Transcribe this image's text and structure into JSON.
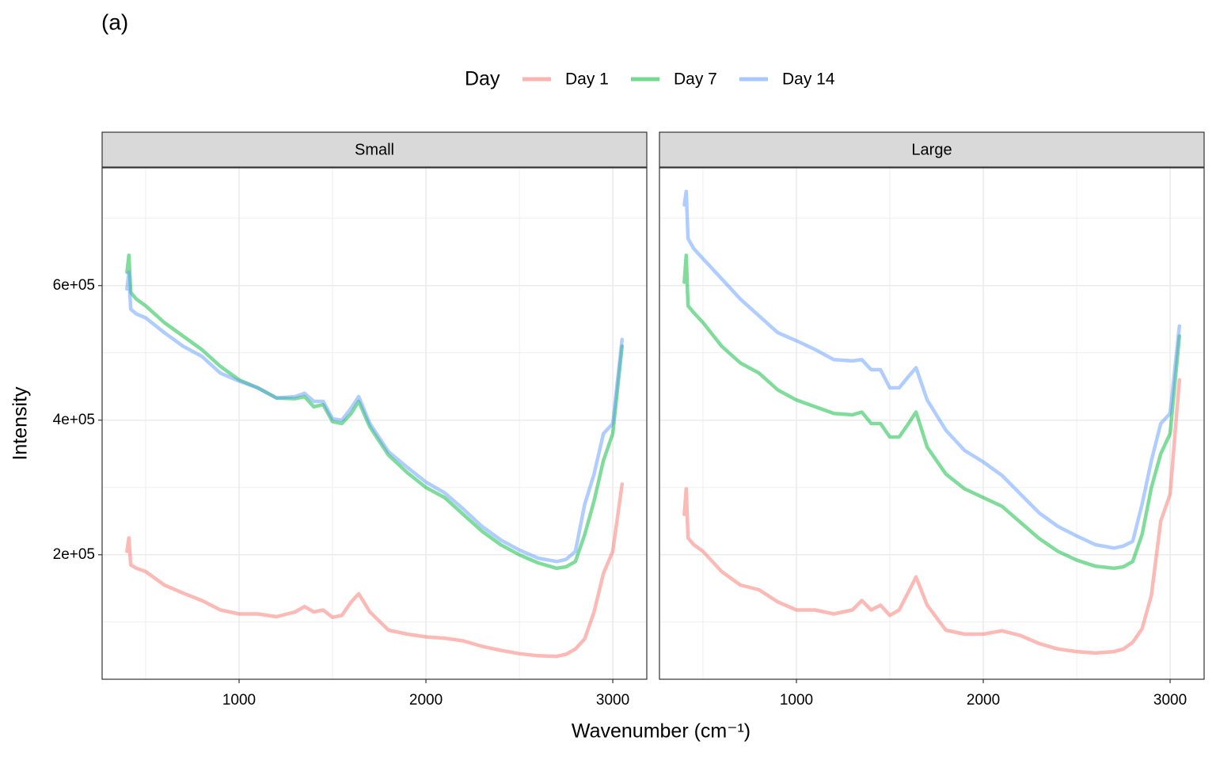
{
  "label": "(a)",
  "legend_title": "Day",
  "xlabel": "Wavenumber (cm⁻¹)",
  "ylabel": "Intensity",
  "chart_data": [
    {
      "type": "line",
      "title": "Small",
      "x": [
        400,
        410,
        420,
        450,
        500,
        600,
        700,
        800,
        900,
        1000,
        1100,
        1200,
        1300,
        1350,
        1400,
        1450,
        1500,
        1550,
        1600,
        1640,
        1700,
        1800,
        1900,
        2000,
        2100,
        2200,
        2300,
        2400,
        2500,
        2600,
        2700,
        2750,
        2800,
        2850,
        2900,
        2950,
        3000,
        3050
      ],
      "series": [
        {
          "name": "Day 1",
          "color": "#F8766D",
          "values": [
            205000,
            225000,
            185000,
            180000,
            175000,
            155000,
            143000,
            132000,
            118000,
            112000,
            112000,
            108000,
            115000,
            123000,
            115000,
            118000,
            107000,
            110000,
            130000,
            142000,
            115000,
            88000,
            82000,
            78000,
            76000,
            72000,
            64000,
            58000,
            53000,
            50000,
            49000,
            52000,
            60000,
            75000,
            115000,
            172000,
            205000,
            305000
          ]
        },
        {
          "name": "Day 7",
          "color": "#00BA38",
          "values": [
            620000,
            645000,
            590000,
            580000,
            570000,
            545000,
            525000,
            505000,
            480000,
            460000,
            448000,
            433000,
            432000,
            435000,
            420000,
            423000,
            398000,
            395000,
            410000,
            428000,
            390000,
            348000,
            322000,
            300000,
            285000,
            260000,
            235000,
            215000,
            200000,
            188000,
            180000,
            182000,
            190000,
            230000,
            280000,
            340000,
            380000,
            510000
          ]
        },
        {
          "name": "Day 14",
          "color": "#619CFF",
          "values": [
            595000,
            620000,
            565000,
            558000,
            552000,
            530000,
            510000,
            495000,
            470000,
            458000,
            448000,
            433000,
            435000,
            440000,
            428000,
            428000,
            402000,
            400000,
            418000,
            435000,
            395000,
            353000,
            330000,
            308000,
            292000,
            268000,
            242000,
            222000,
            207000,
            195000,
            190000,
            193000,
            205000,
            275000,
            320000,
            380000,
            395000,
            520000
          ]
        }
      ],
      "xlim": [
        267,
        3182
      ],
      "xticks": [
        1000,
        2000,
        3000
      ],
      "xminor": [
        500,
        1500,
        2500
      ],
      "ylim": [
        15000,
        775000
      ],
      "yticks": [
        {
          "value": 200000,
          "label": "2e+05"
        },
        {
          "value": 400000,
          "label": "4e+05"
        },
        {
          "value": 600000,
          "label": "6e+05"
        }
      ],
      "yminor": [
        100000,
        300000,
        500000,
        700000
      ],
      "grid": true
    },
    {
      "type": "line",
      "title": "Large",
      "x": [
        400,
        410,
        420,
        450,
        500,
        600,
        700,
        800,
        900,
        1000,
        1100,
        1200,
        1300,
        1350,
        1400,
        1450,
        1500,
        1550,
        1600,
        1640,
        1700,
        1800,
        1900,
        2000,
        2100,
        2200,
        2300,
        2400,
        2500,
        2600,
        2700,
        2750,
        2800,
        2850,
        2900,
        2950,
        3000,
        3050
      ],
      "series": [
        {
          "name": "Day 1",
          "color": "#F8766D",
          "values": [
            260000,
            298000,
            225000,
            215000,
            205000,
            175000,
            155000,
            148000,
            130000,
            118000,
            118000,
            112000,
            118000,
            132000,
            118000,
            125000,
            110000,
            118000,
            145000,
            167000,
            125000,
            88000,
            82000,
            82000,
            87000,
            80000,
            68000,
            60000,
            56000,
            54000,
            56000,
            60000,
            70000,
            90000,
            140000,
            250000,
            290000,
            460000
          ]
        },
        {
          "name": "Day 7",
          "color": "#00BA38",
          "values": [
            605000,
            645000,
            570000,
            560000,
            545000,
            510000,
            485000,
            470000,
            445000,
            430000,
            420000,
            410000,
            408000,
            412000,
            395000,
            395000,
            375000,
            375000,
            395000,
            412000,
            360000,
            320000,
            298000,
            285000,
            272000,
            248000,
            224000,
            205000,
            192000,
            183000,
            180000,
            182000,
            190000,
            230000,
            300000,
            350000,
            380000,
            525000
          ]
        },
        {
          "name": "Day 14",
          "color": "#619CFF",
          "values": [
            720000,
            740000,
            670000,
            655000,
            640000,
            610000,
            580000,
            555000,
            530000,
            518000,
            505000,
            490000,
            488000,
            490000,
            475000,
            475000,
            448000,
            448000,
            465000,
            478000,
            430000,
            385000,
            355000,
            338000,
            318000,
            290000,
            262000,
            242000,
            228000,
            215000,
            210000,
            213000,
            220000,
            275000,
            340000,
            395000,
            410000,
            540000
          ]
        }
      ],
      "xlim": [
        267,
        3182
      ],
      "xticks": [
        1000,
        2000,
        3000
      ],
      "xminor": [
        500,
        1500,
        2500
      ],
      "ylim": [
        15000,
        775000
      ],
      "yticks": [
        {
          "value": 200000,
          "label": "2e+05"
        },
        {
          "value": 400000,
          "label": "4e+05"
        },
        {
          "value": 600000,
          "label": "6e+05"
        }
      ],
      "yminor": [
        100000,
        300000,
        500000,
        700000
      ],
      "grid": true
    }
  ]
}
